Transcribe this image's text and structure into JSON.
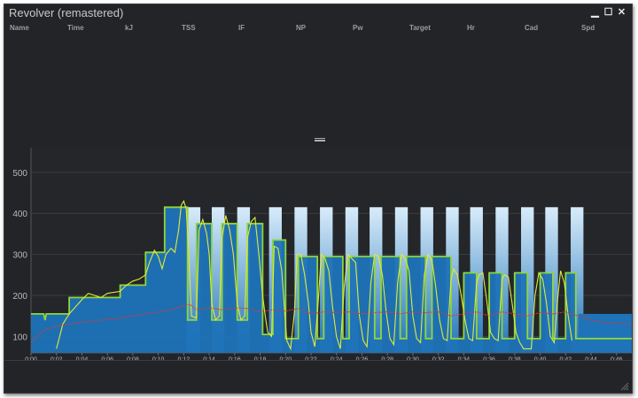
{
  "window": {
    "title": "Revolver (remastered)",
    "buttons": {
      "minimize": "▁",
      "maximize": "☐",
      "close": "✕"
    }
  },
  "summary_columns": [
    "Name",
    "Time",
    "kJ",
    "TSS",
    "IF",
    "NP",
    "Pw",
    "Target",
    "Hr",
    "Cad",
    "Spd"
  ],
  "colors": {
    "background": "#222428",
    "target_fill_top": "#d8ecfa",
    "target_fill_bottom": "#1f73b8",
    "target_line": "#8fd63a",
    "power": "#e0ea3a",
    "heart_rate": "#d23a3a"
  },
  "chart_data": {
    "type": "line",
    "ylim": [
      60,
      560
    ],
    "y_ticks": [
      "100",
      "200",
      "300",
      "400",
      "500"
    ],
    "x_ticks": [
      "0:00",
      "0:02",
      "0:04",
      "0:06",
      "0:08",
      "0:10",
      "0:12",
      "0:14",
      "0:16",
      "0:18",
      "0:20",
      "0:22",
      "0:24",
      "0:26",
      "0:28",
      "0:30",
      "0:32",
      "0:34",
      "0:36",
      "0:38",
      "0:40",
      "0:42",
      "0:44",
      "0:46"
    ],
    "x_range_min": [
      0,
      47.2
    ],
    "series": [
      {
        "kind": "target",
        "points": [
          [
            0,
            155
          ],
          [
            1,
            155
          ],
          [
            1.1,
            140
          ],
          [
            1.2,
            155
          ],
          [
            3,
            155
          ],
          [
            3,
            195
          ],
          [
            7,
            195
          ],
          [
            7,
            225
          ],
          [
            9,
            225
          ],
          [
            9,
            305
          ],
          [
            10.5,
            305
          ],
          [
            10.5,
            415
          ],
          [
            12.3,
            415
          ],
          [
            12.3,
            140
          ],
          [
            13,
            140
          ],
          [
            13,
            375
          ],
          [
            14.2,
            375
          ],
          [
            14.2,
            140
          ],
          [
            15,
            140
          ],
          [
            15,
            375
          ],
          [
            16.2,
            375
          ],
          [
            16.2,
            140
          ],
          [
            17,
            140
          ],
          [
            17,
            375
          ],
          [
            18.2,
            375
          ],
          [
            18.2,
            105
          ],
          [
            19,
            105
          ],
          [
            19,
            335
          ],
          [
            20,
            335
          ],
          [
            20,
            95
          ],
          [
            21,
            95
          ],
          [
            21,
            295
          ],
          [
            22.5,
            295
          ],
          [
            22.5,
            95
          ],
          [
            23,
            95
          ],
          [
            23,
            295
          ],
          [
            24.5,
            295
          ],
          [
            24.5,
            95
          ],
          [
            25,
            95
          ],
          [
            25,
            295
          ],
          [
            27,
            295
          ],
          [
            27,
            95
          ],
          [
            27.5,
            95
          ],
          [
            27.5,
            295
          ],
          [
            29,
            295
          ],
          [
            29,
            95
          ],
          [
            29.5,
            95
          ],
          [
            29.5,
            295
          ],
          [
            31,
            295
          ],
          [
            31,
            95
          ],
          [
            31.5,
            95
          ],
          [
            31.5,
            295
          ],
          [
            33,
            295
          ],
          [
            33,
            95
          ],
          [
            34,
            95
          ],
          [
            34,
            255
          ],
          [
            35,
            255
          ],
          [
            35,
            95
          ],
          [
            36,
            95
          ],
          [
            36,
            255
          ],
          [
            37,
            255
          ],
          [
            37,
            95
          ],
          [
            38,
            95
          ],
          [
            38,
            255
          ],
          [
            39,
            255
          ],
          [
            39,
            95
          ],
          [
            40,
            95
          ],
          [
            40,
            255
          ],
          [
            41,
            255
          ],
          [
            41,
            95
          ],
          [
            42,
            95
          ],
          [
            42,
            255
          ],
          [
            42.8,
            255
          ],
          [
            42.8,
            95
          ],
          [
            47.2,
            95
          ]
        ]
      },
      {
        "kind": "interval_bars",
        "top": 415,
        "bars": [
          [
            12.2,
            13.3
          ],
          [
            14.2,
            15.2
          ],
          [
            16.2,
            17.2
          ],
          [
            18.7,
            19.7
          ],
          [
            20.7,
            21.7
          ],
          [
            22.7,
            23.7
          ],
          [
            24.7,
            25.7
          ],
          [
            26.6,
            27.6
          ],
          [
            28.6,
            29.6
          ],
          [
            30.6,
            31.6
          ],
          [
            32.6,
            33.6
          ],
          [
            34.5,
            35.5
          ],
          [
            36.5,
            37.5
          ],
          [
            38.5,
            39.5
          ],
          [
            40.4,
            41.4
          ],
          [
            42.4,
            43.4
          ]
        ]
      },
      {
        "kind": "base_area",
        "points": [
          [
            0,
            155
          ],
          [
            43,
            155
          ],
          [
            47.2,
            155
          ]
        ]
      },
      {
        "kind": "power",
        "points": [
          [
            2,
            70
          ],
          [
            2.5,
            130
          ],
          [
            3,
            155
          ],
          [
            4,
            190
          ],
          [
            4.5,
            205
          ],
          [
            5,
            200
          ],
          [
            5.5,
            195
          ],
          [
            6,
            205
          ],
          [
            7,
            210
          ],
          [
            7.5,
            225
          ],
          [
            8,
            235
          ],
          [
            8.5,
            240
          ],
          [
            9,
            250
          ],
          [
            9.3,
            280
          ],
          [
            9.7,
            310
          ],
          [
            10,
            295
          ],
          [
            10.3,
            265
          ],
          [
            10.6,
            300
          ],
          [
            11,
            315
          ],
          [
            11.3,
            305
          ],
          [
            11.6,
            360
          ],
          [
            11.8,
            420
          ],
          [
            12,
            430
          ],
          [
            12.2,
            410
          ],
          [
            12.4,
            300
          ],
          [
            12.6,
            150
          ],
          [
            13,
            145
          ],
          [
            13.2,
            360
          ],
          [
            13.5,
            385
          ],
          [
            13.8,
            350
          ],
          [
            14,
            300
          ],
          [
            14.2,
            180
          ],
          [
            14.5,
            140
          ],
          [
            14.8,
            150
          ],
          [
            15,
            340
          ],
          [
            15.3,
            395
          ],
          [
            15.6,
            360
          ],
          [
            15.9,
            300
          ],
          [
            16.2,
            180
          ],
          [
            16.5,
            140
          ],
          [
            16.8,
            150
          ],
          [
            17,
            340
          ],
          [
            17.3,
            380
          ],
          [
            17.6,
            390
          ],
          [
            17.9,
            300
          ],
          [
            18.2,
            200
          ],
          [
            18.4,
            150
          ],
          [
            18.6,
            110
          ],
          [
            18.9,
            100
          ],
          [
            19.1,
            320
          ],
          [
            19.4,
            315
          ],
          [
            19.7,
            260
          ],
          [
            19.9,
            170
          ],
          [
            20.1,
            90
          ],
          [
            20.4,
            70
          ],
          [
            20.7,
            160
          ],
          [
            20.9,
            300
          ],
          [
            21.2,
            300
          ],
          [
            21.5,
            250
          ],
          [
            21.8,
            180
          ],
          [
            22,
            110
          ],
          [
            22.3,
            75
          ],
          [
            22.6,
            200
          ],
          [
            22.8,
            300
          ],
          [
            23.1,
            290
          ],
          [
            23.4,
            260
          ],
          [
            23.7,
            170
          ],
          [
            24,
            100
          ],
          [
            24.3,
            70
          ],
          [
            24.6,
            220
          ],
          [
            24.9,
            300
          ],
          [
            25.2,
            290
          ],
          [
            25.5,
            280
          ],
          [
            25.8,
            150
          ],
          [
            26.1,
            90
          ],
          [
            26.4,
            75
          ],
          [
            26.7,
            230
          ],
          [
            27,
            300
          ],
          [
            27.3,
            295
          ],
          [
            27.6,
            250
          ],
          [
            27.9,
            160
          ],
          [
            28.2,
            95
          ],
          [
            28.5,
            80
          ],
          [
            28.8,
            230
          ],
          [
            29.1,
            300
          ],
          [
            29.4,
            290
          ],
          [
            29.7,
            260
          ],
          [
            30,
            150
          ],
          [
            30.3,
            95
          ],
          [
            30.6,
            85
          ],
          [
            30.9,
            250
          ],
          [
            31.2,
            300
          ],
          [
            31.5,
            285
          ],
          [
            31.8,
            220
          ],
          [
            32.1,
            140
          ],
          [
            32.4,
            95
          ],
          [
            32.7,
            90
          ],
          [
            33,
            240
          ],
          [
            33.2,
            265
          ],
          [
            33.5,
            250
          ],
          [
            33.8,
            200
          ],
          [
            34.1,
            140
          ],
          [
            34.4,
            95
          ],
          [
            34.7,
            90
          ],
          [
            35,
            230
          ],
          [
            35.2,
            250
          ],
          [
            35.5,
            255
          ],
          [
            35.8,
            190
          ],
          [
            36.1,
            110
          ],
          [
            36.4,
            95
          ],
          [
            36.7,
            90
          ],
          [
            37,
            240
          ],
          [
            37.2,
            250
          ],
          [
            37.5,
            245
          ],
          [
            37.8,
            180
          ],
          [
            38.1,
            110
          ],
          [
            38.4,
            85
          ],
          [
            38.7,
            70
          ],
          [
            39,
            70
          ],
          [
            39.3,
            70
          ],
          [
            39.6,
            200
          ],
          [
            39.9,
            255
          ],
          [
            40.2,
            240
          ],
          [
            40.5,
            180
          ],
          [
            40.8,
            100
          ],
          [
            41.1,
            85
          ],
          [
            41.4,
            200
          ],
          [
            41.6,
            260
          ],
          [
            41.9,
            230
          ],
          [
            42.2,
            150
          ],
          [
            42.5,
            90
          ]
        ]
      },
      {
        "kind": "heart_rate",
        "points": [
          [
            0,
            85
          ],
          [
            1,
            115
          ],
          [
            2,
            125
          ],
          [
            3,
            130
          ],
          [
            4,
            135
          ],
          [
            5,
            138
          ],
          [
            6,
            142
          ],
          [
            7,
            145
          ],
          [
            8,
            150
          ],
          [
            9,
            155
          ],
          [
            10,
            160
          ],
          [
            11,
            165
          ],
          [
            12,
            175
          ],
          [
            12.5,
            178
          ],
          [
            13,
            165
          ],
          [
            14,
            170
          ],
          [
            15,
            165
          ],
          [
            16,
            170
          ],
          [
            17,
            168
          ],
          [
            18,
            160
          ],
          [
            19,
            165
          ],
          [
            20,
            162
          ],
          [
            21,
            168
          ],
          [
            22,
            155
          ],
          [
            23,
            160
          ],
          [
            24,
            158
          ],
          [
            25,
            160
          ],
          [
            26,
            155
          ],
          [
            27,
            158
          ],
          [
            28,
            160
          ],
          [
            29,
            155
          ],
          [
            30,
            160
          ],
          [
            31,
            158
          ],
          [
            32,
            160
          ],
          [
            33,
            150
          ],
          [
            34,
            155
          ],
          [
            35,
            160
          ],
          [
            36,
            150
          ],
          [
            37,
            160
          ],
          [
            38,
            155
          ],
          [
            39,
            150
          ],
          [
            40,
            158
          ],
          [
            41,
            155
          ],
          [
            42,
            160
          ],
          [
            43,
            150
          ],
          [
            44,
            140
          ],
          [
            45,
            135
          ],
          [
            46,
            132
          ],
          [
            47.2,
            130
          ]
        ]
      }
    ]
  }
}
